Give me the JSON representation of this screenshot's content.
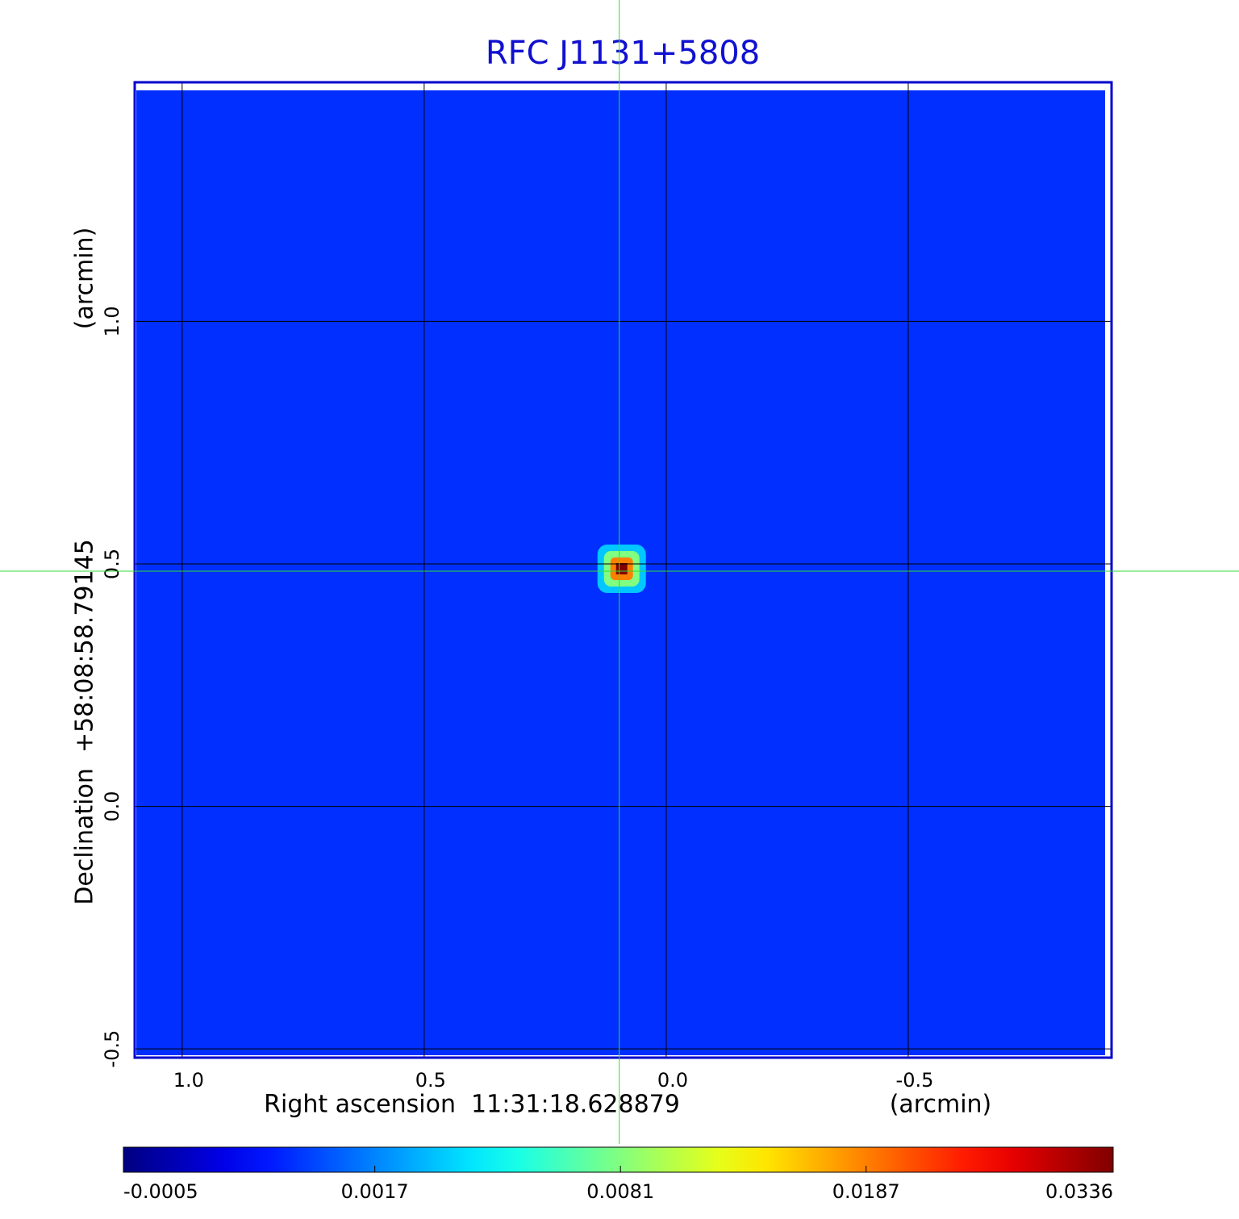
{
  "chart_data": {
    "type": "image",
    "title": "RFC J1131+5808",
    "x_label": "Right ascension  11:31:18.628879",
    "x_unit": "(arcmin)",
    "y_label": "Declination  +58:08:58.79145",
    "y_unit": "(arcmin)",
    "xlim": [
      1.098,
      -0.92
    ],
    "ylim": [
      -0.518,
      1.493
    ],
    "xticks": [
      {
        "value": 1.0,
        "label": "1.0"
      },
      0.5,
      {
        "value": 0.0,
        "label": "0.0"
      },
      -0.5
    ],
    "yticks": [
      {
        "value": 1.0,
        "label": "1.0"
      },
      0.5,
      {
        "value": 0.0,
        "label": "0.0"
      },
      -0.5
    ],
    "grid": true,
    "colormap": "jet",
    "image": {
      "background": 0.0005,
      "peak": 0.0336,
      "peak_x": 0.092,
      "peak_y": 0.49
    },
    "crosshair": {
      "x": 0.097,
      "y": 0.485,
      "color": "#33dd33"
    },
    "colorbar": {
      "scale": "sqrt",
      "lim": [
        -0.0005,
        0.0336
      ],
      "ticks": [
        -0.0005,
        0.0017,
        0.0081,
        0.0187,
        0.0336
      ]
    }
  }
}
